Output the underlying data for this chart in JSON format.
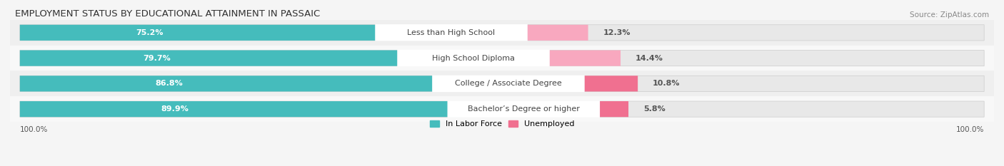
{
  "title": "EMPLOYMENT STATUS BY EDUCATIONAL ATTAINMENT IN PASSAIC",
  "source": "Source: ZipAtlas.com",
  "categories": [
    "Less than High School",
    "High School Diploma",
    "College / Associate Degree",
    "Bachelor’s Degree or higher"
  ],
  "labor_force": [
    75.2,
    79.7,
    86.8,
    89.9
  ],
  "unemployed": [
    12.3,
    14.4,
    10.8,
    5.8
  ],
  "teal_color": "#45BCBC",
  "pink_color": "#F07090",
  "pink_light_color": "#F8A8BF",
  "row_bg_colors": [
    "#EFEFEF",
    "#F8F8F8",
    "#EFEFEF",
    "#F8F8F8"
  ],
  "label_bg_color": "#FFFFFF",
  "axis_label_left": "100.0%",
  "axis_label_right": "100.0%",
  "legend_labor": "In Labor Force",
  "legend_unemployed": "Unemployed",
  "title_fontsize": 9.5,
  "source_fontsize": 7.5,
  "bar_label_fontsize": 8,
  "cat_label_fontsize": 8,
  "legend_fontsize": 8,
  "axis_fontsize": 7.5,
  "figsize": [
    14.06,
    2.33
  ],
  "dpi": 100
}
